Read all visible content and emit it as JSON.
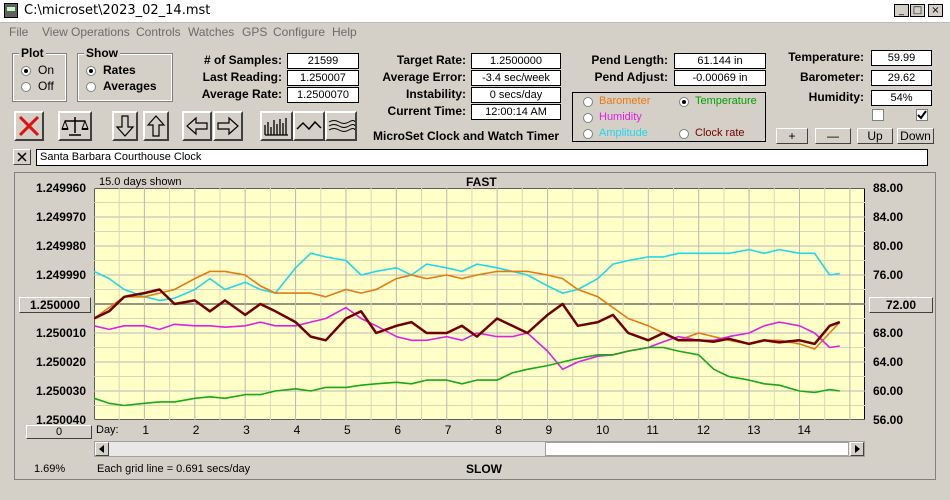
{
  "window": {
    "title": "C:\\microset\\2023_02_14.mst"
  },
  "menu": [
    "File",
    "View",
    "Operations",
    "Controls",
    "Watches",
    "GPS",
    "Configure",
    "Help"
  ],
  "plot_group": {
    "title": "Plot",
    "options": [
      {
        "label": "On",
        "selected": true
      },
      {
        "label": "Off",
        "selected": false
      }
    ]
  },
  "show_group": {
    "title": "Show",
    "options": [
      {
        "label": "Rates",
        "selected": true
      },
      {
        "label": "Averages",
        "selected": false
      }
    ]
  },
  "stats": {
    "samples_label": "# of Samples:",
    "samples": "21599",
    "last_label": "Last Reading:",
    "last": "1.250007",
    "avg_label": "Average Rate:",
    "avg": "1.2500070"
  },
  "rates": {
    "target_label": "Target Rate:",
    "target": "1.2500000",
    "error_label": "Average Error:",
    "error": "-3.4 sec/week",
    "instab_label": "Instability:",
    "instab": "0 secs/day",
    "time_label": "Current Time:",
    "time": "12:00:14 AM"
  },
  "app_title": "MicroSet Clock and Watch Timer",
  "pend": {
    "length_label": "Pend Length:",
    "length": "61.144 in",
    "adjust_label": "Pend Adjust:",
    "adjust": "-0.00069 in"
  },
  "env": {
    "temp_label": "Temperature:",
    "temp": "59.99",
    "baro_label": "Barometer:",
    "baro": "29.62",
    "hum_label": "Humidity:",
    "hum": "54%"
  },
  "legend": [
    {
      "label": "Barometer",
      "color": "#e87810",
      "selected": false
    },
    {
      "label": "Temperature",
      "color": "#00a000",
      "selected": true
    },
    {
      "label": "Humidity",
      "color": "#e020e0",
      "selected": false
    },
    {
      "label": "Clock rate",
      "color": "#700000",
      "selected": false
    },
    {
      "label": "Amplitude",
      "color": "#20d8e8",
      "selected": false
    }
  ],
  "right_buttons": {
    "plus": "+",
    "minus": "—",
    "up": "Up",
    "down": "Down"
  },
  "watch_name": "Santa Barbara Courthouse Clock",
  "chart_data": {
    "type": "line",
    "top_label": "FAST",
    "bottom_label": "SLOW",
    "days_shown": "15.0 days shown",
    "grid_note": "Each grid line = 0.691 secs/day",
    "percent": "1.69%",
    "left_center": "1.250000",
    "right_center": "72.00",
    "bottom_button": "0",
    "day_label": "Day:",
    "left_ticks": [
      "1.249960",
      "1.249970",
      "1.249980",
      "1.249990",
      "1.250000",
      "1.250010",
      "1.250020",
      "1.250030",
      "1.250040"
    ],
    "right_ticks": [
      "88.00",
      "84.00",
      "80.00",
      "76.00",
      "72.00",
      "68.00",
      "64.00",
      "60.00",
      "56.00"
    ],
    "x_ticks": [
      "1",
      "2",
      "3",
      "4",
      "5",
      "6",
      "7",
      "8",
      "9",
      "10",
      "11",
      "12",
      "13",
      "14"
    ],
    "xlim": [
      0,
      15.3
    ],
    "series": [
      {
        "color": "#20d8e8",
        "x": [
          0,
          0.3,
          0.6,
          1,
          1.3,
          1.6,
          2,
          2.3,
          2.6,
          3,
          3.3,
          3.6,
          4,
          4.3,
          4.6,
          5,
          5.3,
          5.6,
          6,
          6.3,
          6.6,
          7,
          7.3,
          7.6,
          8,
          8.3,
          8.6,
          9,
          9.3,
          9.6,
          10,
          10.3,
          10.6,
          11,
          11.3,
          11.6,
          12,
          12.3,
          12.6,
          13,
          13.3,
          13.6,
          14,
          14.3,
          14.6,
          14.8
        ],
        "y": [
          76.5,
          75.5,
          74,
          73,
          72.5,
          72.8,
          74,
          75.5,
          74,
          75,
          74,
          73.5,
          77,
          79,
          78.5,
          78,
          76,
          76.5,
          77,
          76,
          77.5,
          77,
          76.5,
          77.5,
          77,
          76.5,
          76,
          74.5,
          73.5,
          74,
          75.5,
          77.5,
          78,
          78.5,
          78.5,
          79,
          79,
          79,
          79,
          79.5,
          79,
          79.5,
          79,
          79,
          76,
          76.2
        ]
      },
      {
        "color": "#e87810",
        "x": [
          0,
          0.3,
          0.6,
          1,
          1.3,
          1.6,
          2,
          2.3,
          2.6,
          3,
          3.3,
          3.6,
          4,
          4.3,
          4.6,
          5,
          5.3,
          5.6,
          6,
          6.3,
          6.6,
          7,
          7.3,
          7.6,
          8,
          8.3,
          8.6,
          9,
          9.3,
          9.6,
          10,
          10.3,
          10.6,
          11,
          11.3,
          11.6,
          12,
          12.3,
          12.6,
          13,
          13.3,
          13.6,
          14,
          14.3,
          14.6,
          14.8
        ],
        "y": [
          70,
          71.5,
          73,
          73,
          73.5,
          74,
          75.5,
          76.5,
          76.5,
          76,
          74.5,
          73.5,
          73.5,
          73.5,
          73,
          74,
          73.5,
          74,
          75.5,
          76,
          75.5,
          76,
          75.5,
          76,
          76.5,
          76.5,
          76.5,
          76,
          75.5,
          74,
          73,
          71.5,
          70,
          69,
          68,
          67,
          68,
          67.5,
          67,
          66.5,
          67,
          67,
          66.5,
          65.8,
          68,
          69.5
        ]
      },
      {
        "color": "#e020e0",
        "x": [
          0,
          0.3,
          0.6,
          1,
          1.3,
          1.6,
          2,
          2.3,
          2.6,
          3,
          3.3,
          3.6,
          4,
          4.3,
          4.6,
          5,
          5.3,
          5.6,
          6,
          6.3,
          6.6,
          7,
          7.3,
          7.6,
          8,
          8.3,
          8.6,
          9,
          9.3,
          9.6,
          10,
          10.3,
          10.6,
          11,
          11.3,
          11.6,
          12,
          12.3,
          12.6,
          13,
          13.3,
          13.6,
          14,
          14.3,
          14.6,
          14.8
        ],
        "y": [
          69,
          68.5,
          69,
          69,
          68.5,
          69.2,
          69,
          69,
          68.8,
          69,
          69.5,
          69,
          69,
          69.5,
          70,
          71.5,
          70,
          69,
          67.5,
          67,
          67,
          67.5,
          67,
          68,
          67.5,
          67.5,
          68,
          65.5,
          63,
          64,
          64.8,
          65,
          65.5,
          66,
          66.8,
          67.5,
          67,
          67,
          67.5,
          68,
          69,
          69.5,
          69,
          68,
          66,
          66.2
        ]
      },
      {
        "color": "#700000",
        "x": [
          0,
          0.3,
          0.6,
          1,
          1.3,
          1.6,
          2,
          2.3,
          2.6,
          3,
          3.3,
          3.6,
          4,
          4.3,
          4.6,
          5,
          5.3,
          5.6,
          6,
          6.3,
          6.6,
          7,
          7.3,
          7.6,
          8,
          8.3,
          8.6,
          9,
          9.3,
          9.6,
          10,
          10.3,
          10.6,
          11,
          11.3,
          11.6,
          12,
          12.3,
          12.6,
          13,
          13.3,
          13.6,
          14,
          14.3,
          14.6,
          14.8
        ],
        "y": [
          70,
          71,
          73,
          73.5,
          74,
          72,
          72.5,
          71,
          72.5,
          70.5,
          72,
          71,
          69.5,
          67.5,
          67,
          70,
          71,
          68,
          69,
          69.5,
          68,
          68,
          69,
          67.5,
          70,
          69,
          68,
          70.5,
          72,
          69,
          69.5,
          70.5,
          68,
          67,
          68,
          67,
          67,
          66.8,
          67.2,
          66.5,
          67,
          66.7,
          67,
          66.5,
          69,
          69.5
        ]
      },
      {
        "color": "#18a818",
        "x": [
          0,
          0.3,
          0.6,
          1,
          1.3,
          1.6,
          2,
          2.3,
          2.6,
          3,
          3.3,
          3.6,
          4,
          4.3,
          4.6,
          5,
          5.3,
          5.6,
          6,
          6.3,
          6.6,
          7,
          7.3,
          7.6,
          8,
          8.3,
          8.6,
          9,
          9.3,
          9.6,
          10,
          10.3,
          10.6,
          11,
          11.3,
          11.6,
          12,
          12.3,
          12.6,
          13,
          13.3,
          13.6,
          14,
          14.3,
          14.6,
          14.8
        ],
        "y": [
          59,
          58.3,
          58,
          58.3,
          58.5,
          58.5,
          59,
          59.2,
          59,
          59.5,
          59.5,
          60,
          60.3,
          60,
          60.5,
          60.5,
          60.8,
          61,
          61.2,
          61,
          61.5,
          61.5,
          61,
          61.5,
          61.5,
          62.5,
          63,
          63.5,
          64,
          64.5,
          65,
          65,
          65.5,
          66,
          66,
          65.5,
          65,
          63,
          62,
          61.5,
          61,
          60.8,
          60,
          59.8,
          60.2,
          60
        ]
      }
    ]
  }
}
